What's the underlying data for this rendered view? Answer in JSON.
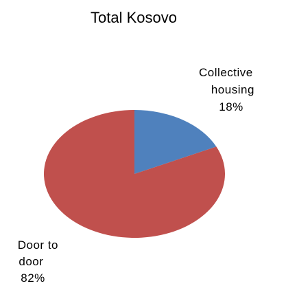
{
  "chart_data": {
    "type": "pie",
    "title": "Total Kosovo",
    "slices": [
      {
        "label_lines": [
          "Collective",
          "housing",
          "18%"
        ],
        "value": 18,
        "color": "#4F81BD"
      },
      {
        "label_lines": [
          "Door to",
          "door",
          "82%"
        ],
        "value": 82,
        "color": "#C0504D"
      }
    ],
    "start": "12 o'clock",
    "direction": "clockwise"
  }
}
